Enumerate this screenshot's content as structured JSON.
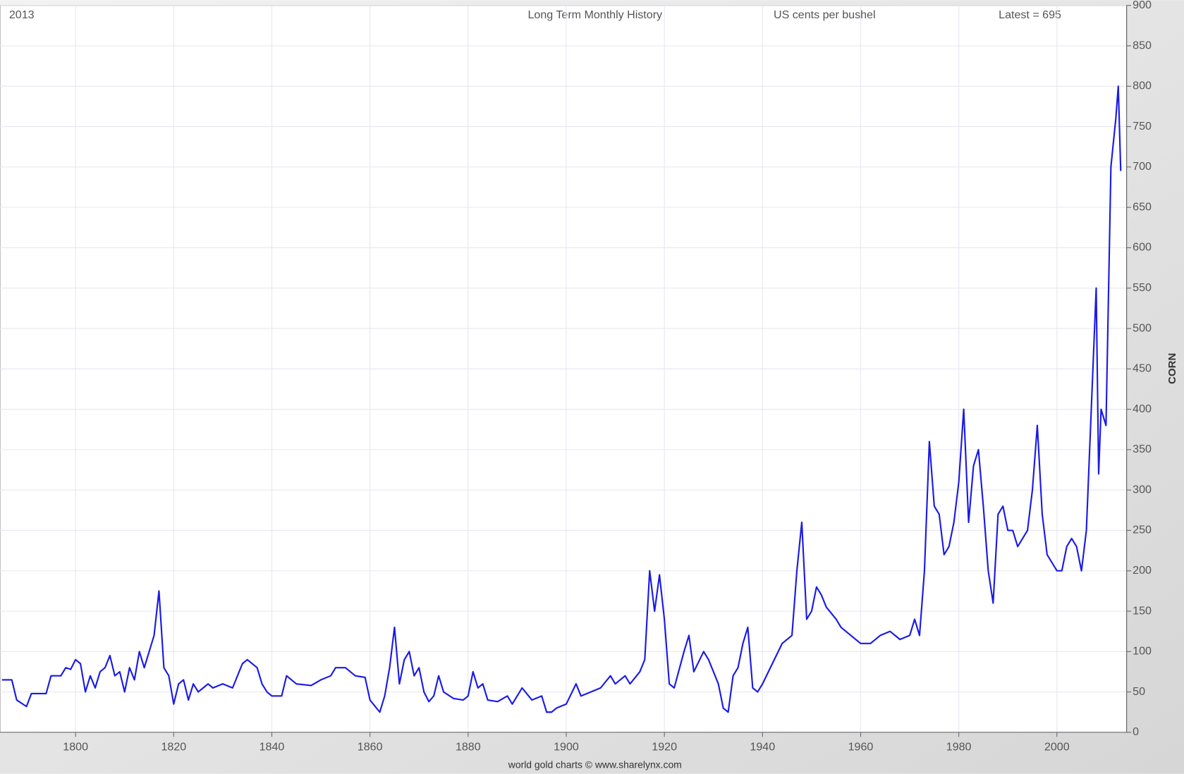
{
  "chart_data": {
    "type": "line",
    "title": "Long Term Monthly History",
    "subtitle": "US cents per bushel",
    "annotations": [
      "2013",
      "Latest = 695"
    ],
    "ylabel": "CORN",
    "source": "world gold charts © www.sharelynx.com",
    "color": "#1a1ae6",
    "grid": true,
    "xlim": [
      1784.6,
      2014.2
    ],
    "ylim": [
      0,
      900
    ],
    "xticks": [
      1800,
      1820,
      1840,
      1860,
      1880,
      1900,
      1920,
      1940,
      1960,
      1980,
      2000
    ],
    "yticks": [
      0,
      50,
      100,
      150,
      200,
      250,
      300,
      350,
      400,
      450,
      500,
      550,
      600,
      650,
      700,
      750,
      800,
      850,
      900
    ],
    "x": [
      1785,
      1787,
      1788,
      1790,
      1791,
      1794,
      1795,
      1797,
      1798,
      1799,
      1800,
      1801,
      1802,
      1803,
      1804,
      1805,
      1806,
      1807,
      1808,
      1809,
      1810,
      1811,
      1812,
      1813,
      1814,
      1815,
      1816,
      1817,
      1818,
      1819,
      1820,
      1821,
      1822,
      1823,
      1824,
      1825,
      1826,
      1827,
      1828,
      1830,
      1832,
      1834,
      1835,
      1837,
      1838,
      1839,
      1840,
      1842,
      1843,
      1845,
      1848,
      1850,
      1852,
      1853,
      1855,
      1856,
      1857,
      1859,
      1860,
      1862,
      1863,
      1864,
      1865,
      1866,
      1867,
      1868,
      1869,
      1870,
      1871,
      1872,
      1873,
      1874,
      1875,
      1877,
      1879,
      1880,
      1881,
      1882,
      1883,
      1884,
      1886,
      1888,
      1889,
      1891,
      1893,
      1895,
      1896,
      1897,
      1898,
      1900,
      1902,
      1903,
      1905,
      1907,
      1909,
      1910,
      1912,
      1913,
      1915,
      1916,
      1917,
      1918,
      1919,
      1920,
      1921,
      1922,
      1924,
      1925,
      1926,
      1928,
      1929,
      1931,
      1932,
      1933,
      1934,
      1935,
      1936,
      1937,
      1938,
      1939,
      1940,
      1942,
      1944,
      1946,
      1947,
      1948,
      1949,
      1950,
      1951,
      1952,
      1953,
      1955,
      1956,
      1958,
      1960,
      1962,
      1964,
      1966,
      1968,
      1970,
      1971,
      1972,
      1973,
      1974,
      1975,
      1976,
      1977,
      1978,
      1979,
      1980,
      1981,
      1982,
      1983,
      1984,
      1985,
      1986,
      1987,
      1988,
      1989,
      1990,
      1991,
      1992,
      1993,
      1994,
      1995,
      1996,
      1997,
      1998,
      1999,
      2000,
      2001,
      2002,
      2003,
      2004,
      2005,
      2006,
      2007,
      2008,
      2008.5,
      2009,
      2010,
      2011,
      2012,
      2012.5,
      2013
    ],
    "values": [
      65,
      65,
      40,
      32,
      48,
      48,
      70,
      70,
      80,
      78,
      90,
      85,
      50,
      70,
      55,
      75,
      80,
      95,
      70,
      75,
      50,
      80,
      65,
      100,
      80,
      100,
      120,
      175,
      80,
      70,
      35,
      60,
      65,
      40,
      60,
      50,
      55,
      60,
      55,
      60,
      55,
      85,
      90,
      80,
      60,
      50,
      45,
      45,
      70,
      60,
      58,
      65,
      70,
      80,
      80,
      75,
      70,
      68,
      40,
      25,
      45,
      80,
      130,
      60,
      90,
      100,
      70,
      80,
      50,
      38,
      45,
      70,
      50,
      42,
      40,
      45,
      75,
      55,
      60,
      40,
      38,
      45,
      35,
      55,
      40,
      45,
      25,
      25,
      30,
      35,
      60,
      45,
      50,
      55,
      70,
      60,
      70,
      60,
      75,
      90,
      200,
      150,
      195,
      140,
      60,
      55,
      100,
      120,
      75,
      100,
      90,
      60,
      30,
      25,
      70,
      80,
      110,
      130,
      55,
      50,
      60,
      85,
      110,
      120,
      200,
      260,
      140,
      150,
      180,
      170,
      155,
      140,
      130,
      120,
      110,
      110,
      120,
      125,
      115,
      120,
      140,
      120,
      200,
      360,
      280,
      270,
      220,
      230,
      260,
      310,
      400,
      260,
      330,
      350,
      280,
      200,
      160,
      270,
      280,
      250,
      250,
      230,
      240,
      250,
      300,
      380,
      270,
      220,
      210,
      200,
      200,
      230,
      240,
      230,
      200,
      250,
      400,
      550,
      320,
      400,
      380,
      700,
      760,
      800,
      695
    ]
  }
}
